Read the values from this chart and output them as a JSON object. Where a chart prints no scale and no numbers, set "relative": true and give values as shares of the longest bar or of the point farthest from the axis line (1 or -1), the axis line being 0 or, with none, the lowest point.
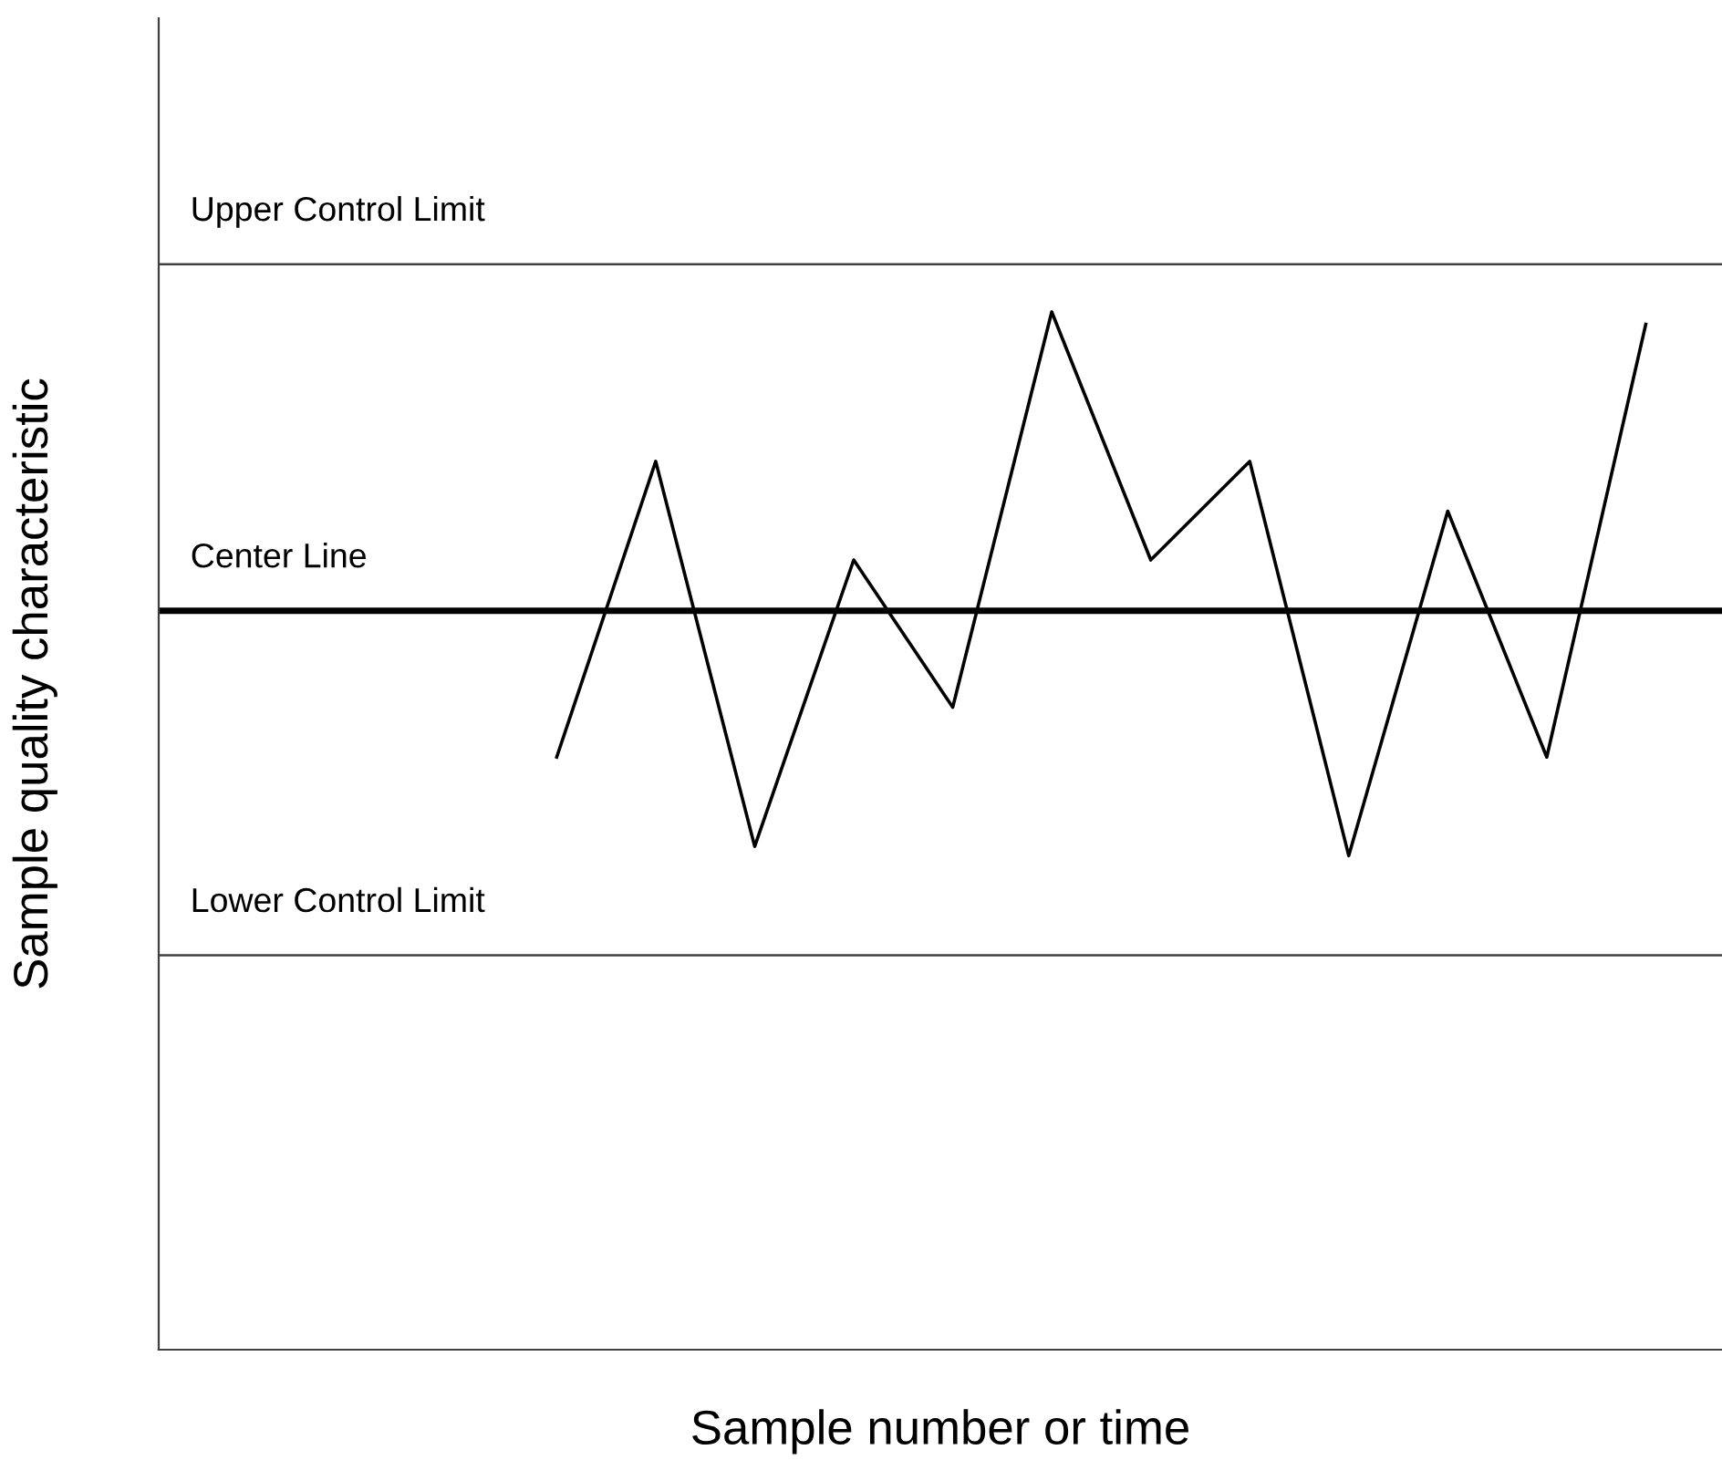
{
  "chart_data": {
    "type": "line",
    "relative": true,
    "xlabel": "Sample number or time",
    "ylabel": "Sample quality characteristic",
    "categories": [
      null,
      null,
      null,
      null,
      null,
      null,
      null,
      null,
      null,
      null,
      null,
      null,
      null,
      null,
      null,
      null
    ],
    "series": [
      {
        "color": "#000000",
        "values": [
          null,
          null,
          null,
          null,
          0.571,
          0.856,
          0.485,
          0.761,
          0.619,
          1,
          0.761,
          0.856,
          0.476,
          0.808,
          0.571,
          0.988
        ]
      }
    ],
    "ref_lines": [
      {
        "axis": "y",
        "value": 1.046,
        "label": "Upper Control Limit",
        "color": "#404040"
      },
      {
        "axis": "y",
        "value": 0.712,
        "label": "Center Line",
        "color": "#000000"
      },
      {
        "axis": "y",
        "value": 0.38,
        "label": "Lower Control Limit",
        "color": "#404040"
      }
    ],
    "grid": false,
    "legend": false,
    "marker": "none",
    "line_style": "solid"
  }
}
